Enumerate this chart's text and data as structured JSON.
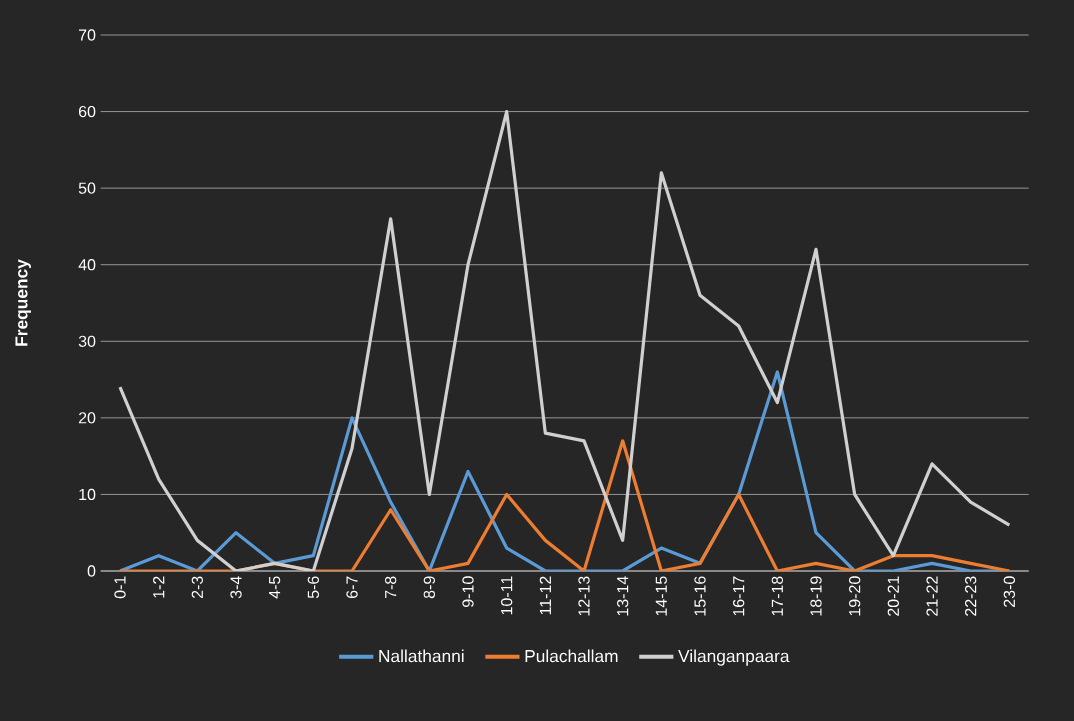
{
  "chart_data": {
    "type": "line",
    "ylabel": "Frequency",
    "categories": [
      "0-1",
      "1-2",
      "2-3",
      "3-4",
      "4-5",
      "5-6",
      "6-7",
      "7-8",
      "8-9",
      "9-10",
      "10-11",
      "11-12",
      "12-13",
      "13-14",
      "14-15",
      "15-16",
      "16-17",
      "17-18",
      "18-19",
      "19-20",
      "20-21",
      "21-22",
      "22-23",
      "23-0"
    ],
    "series": [
      {
        "name": "Nallathanni",
        "color": "#5b9bd5",
        "values": [
          0,
          2,
          0,
          5,
          1,
          2,
          20,
          9,
          0,
          13,
          3,
          0,
          0,
          0,
          3,
          1,
          10,
          26,
          5,
          0,
          0,
          1,
          0,
          0
        ]
      },
      {
        "name": "Pulachallam",
        "color": "#ed7d31",
        "values": [
          0,
          0,
          0,
          0,
          1,
          0,
          0,
          8,
          0,
          1,
          10,
          4,
          0,
          17,
          0,
          1,
          10,
          0,
          1,
          0,
          2,
          2,
          1,
          0
        ]
      },
      {
        "name": "Vilanganpaara",
        "color": "#d0d0d0",
        "values": [
          24,
          12,
          4,
          0,
          1,
          0,
          16,
          46,
          10,
          40,
          60,
          18,
          17,
          4,
          52,
          36,
          32,
          22,
          42,
          10,
          2,
          14,
          9,
          6
        ]
      }
    ],
    "ylim": [
      0,
      70
    ],
    "yticks": [
      0,
      10,
      20,
      30,
      40,
      50,
      60,
      70
    ],
    "grid": "y",
    "legend": "bottom"
  }
}
